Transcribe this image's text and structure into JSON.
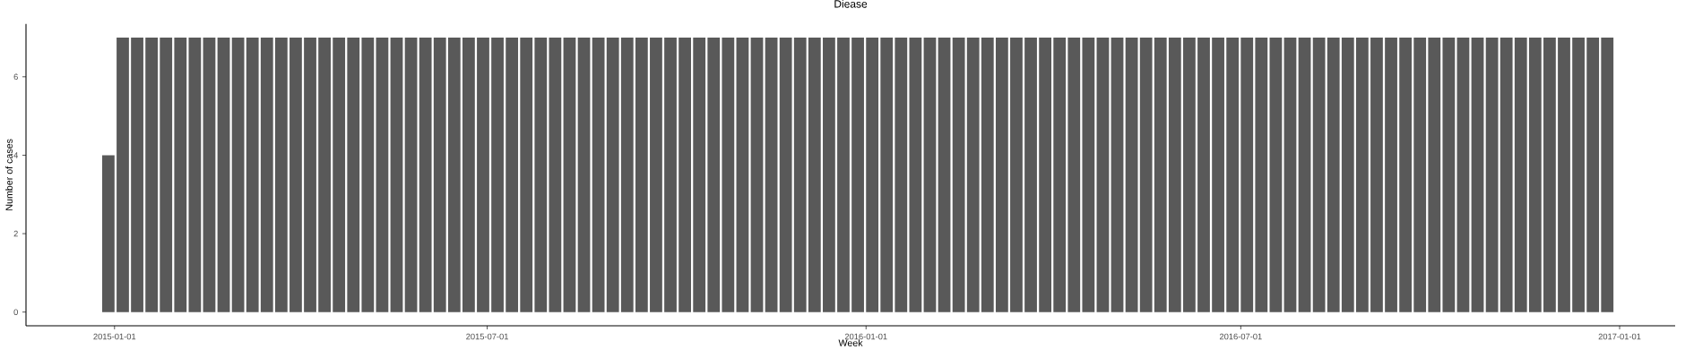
{
  "chart_data": {
    "type": "bar",
    "title": "Diease",
    "xlabel": "Week",
    "ylabel": "Number of cases",
    "x": [
      "2014-12-29",
      "2015-01-05",
      "2015-01-12",
      "2015-01-19",
      "2015-01-26",
      "2015-02-02",
      "2015-02-09",
      "2015-02-16",
      "2015-02-23",
      "2015-03-02",
      "2015-03-09",
      "2015-03-16",
      "2015-03-23",
      "2015-03-30",
      "2015-04-06",
      "2015-04-13",
      "2015-04-20",
      "2015-04-27",
      "2015-05-04",
      "2015-05-11",
      "2015-05-18",
      "2015-05-25",
      "2015-06-01",
      "2015-06-08",
      "2015-06-15",
      "2015-06-22",
      "2015-06-29",
      "2015-07-06",
      "2015-07-13",
      "2015-07-20",
      "2015-07-27",
      "2015-08-03",
      "2015-08-10",
      "2015-08-17",
      "2015-08-24",
      "2015-08-31",
      "2015-09-07",
      "2015-09-14",
      "2015-09-21",
      "2015-09-28",
      "2015-10-05",
      "2015-10-12",
      "2015-10-19",
      "2015-10-26",
      "2015-11-02",
      "2015-11-09",
      "2015-11-16",
      "2015-11-23",
      "2015-11-30",
      "2015-12-07",
      "2015-12-14",
      "2015-12-21",
      "2015-12-28",
      "2016-01-04",
      "2016-01-11",
      "2016-01-18",
      "2016-01-25",
      "2016-02-01",
      "2016-02-08",
      "2016-02-15",
      "2016-02-22",
      "2016-02-29",
      "2016-03-07",
      "2016-03-14",
      "2016-03-21",
      "2016-03-28",
      "2016-04-04",
      "2016-04-11",
      "2016-04-18",
      "2016-04-25",
      "2016-05-02",
      "2016-05-09",
      "2016-05-16",
      "2016-05-23",
      "2016-05-30",
      "2016-06-06",
      "2016-06-13",
      "2016-06-20",
      "2016-06-27",
      "2016-07-04",
      "2016-07-11",
      "2016-07-18",
      "2016-07-25",
      "2016-08-01",
      "2016-08-08",
      "2016-08-15",
      "2016-08-22",
      "2016-08-29",
      "2016-09-05",
      "2016-09-12",
      "2016-09-19",
      "2016-09-26",
      "2016-10-03",
      "2016-10-10",
      "2016-10-17",
      "2016-10-24",
      "2016-10-31",
      "2016-11-07",
      "2016-11-14",
      "2016-11-21",
      "2016-11-28",
      "2016-12-05",
      "2016-12-12",
      "2016-12-19",
      "2016-12-26"
    ],
    "values": [
      4,
      7,
      7,
      7,
      7,
      7,
      7,
      7,
      7,
      7,
      7,
      7,
      7,
      7,
      7,
      7,
      7,
      7,
      7,
      7,
      7,
      7,
      7,
      7,
      7,
      7,
      7,
      7,
      7,
      7,
      7,
      7,
      7,
      7,
      7,
      7,
      7,
      7,
      7,
      7,
      7,
      7,
      7,
      7,
      7,
      7,
      7,
      7,
      7,
      7,
      7,
      7,
      7,
      7,
      7,
      7,
      7,
      7,
      7,
      7,
      7,
      7,
      7,
      7,
      7,
      7,
      7,
      7,
      7,
      7,
      7,
      7,
      7,
      7,
      7,
      7,
      7,
      7,
      7,
      7,
      7,
      7,
      7,
      7,
      7,
      7,
      7,
      7,
      7,
      7,
      7,
      7,
      7,
      7,
      7,
      7,
      7,
      7,
      7,
      7,
      7,
      7,
      7,
      7,
      7
    ],
    "color": "#595959",
    "xlim": [
      "2014-11-19",
      "2017-01-28"
    ],
    "xticks": [
      "2015-01-01",
      "2015-07-01",
      "2016-01-01",
      "2016-07-01",
      "2017-01-01"
    ],
    "ylim": [
      -0.35,
      7.35
    ],
    "yticks": [
      0,
      2,
      4,
      6
    ]
  }
}
